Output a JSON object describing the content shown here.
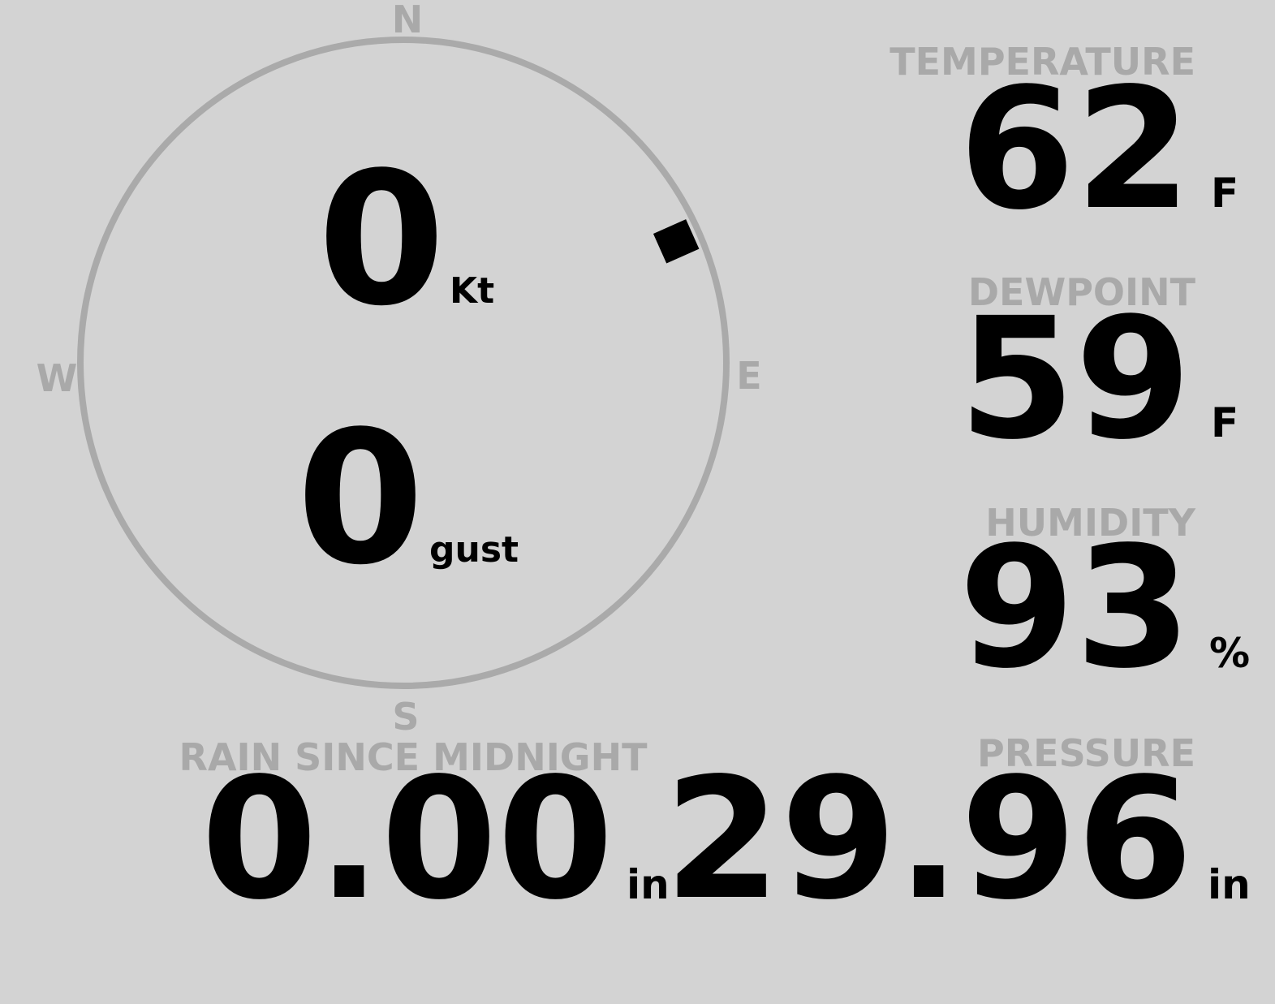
{
  "compass": {
    "north": "N",
    "east": "E",
    "south": "S",
    "west": "W",
    "wind_direction": 66
  },
  "wind": {
    "speed": "0",
    "speed_unit": "Kt",
    "gust": "0",
    "gust_unit": "gust"
  },
  "temperature": {
    "label": "TEMPERATURE",
    "value": "62",
    "unit": "F"
  },
  "dewpoint": {
    "label": "DEWPOINT",
    "value": "59",
    "unit": "F"
  },
  "humidity": {
    "label": "HUMIDITY",
    "value": "93",
    "unit": "%"
  },
  "rain": {
    "label": "RAIN SINCE MIDNIGHT",
    "value": "0.00",
    "unit": "in"
  },
  "pressure": {
    "label": "PRESSURE",
    "value": "29.96",
    "unit": "in"
  }
}
